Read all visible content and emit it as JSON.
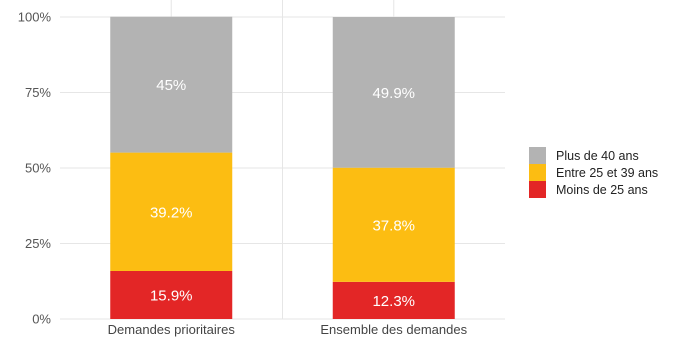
{
  "chart_data": {
    "type": "bar",
    "stacked": true,
    "categories": [
      "Demandes prioritaires",
      "Ensemble des demandes"
    ],
    "series": [
      {
        "name": "Moins de 25 ans",
        "values": [
          15.9,
          12.3
        ],
        "labels": [
          "15.9%",
          "12.3%"
        ],
        "color": "#e32626"
      },
      {
        "name": "Entre 25 et 39 ans",
        "values": [
          39.2,
          37.8
        ],
        "labels": [
          "39.2%",
          "37.8%"
        ],
        "color": "#fcbd12"
      },
      {
        "name": "Plus de 40 ans",
        "values": [
          45,
          49.9
        ],
        "labels": [
          "45%",
          "49.9%"
        ],
        "color": "#b3b3b3"
      }
    ],
    "ylim": [
      0,
      100
    ],
    "yticks": [
      0,
      25,
      50,
      75,
      100
    ],
    "ytick_labels": [
      "0%",
      "25%",
      "50%",
      "75%",
      "100%"
    ],
    "grid": true,
    "legend_position": "right",
    "legend_order": [
      "Plus de 40 ans",
      "Entre 25 et 39 ans",
      "Moins de 25 ans"
    ]
  }
}
